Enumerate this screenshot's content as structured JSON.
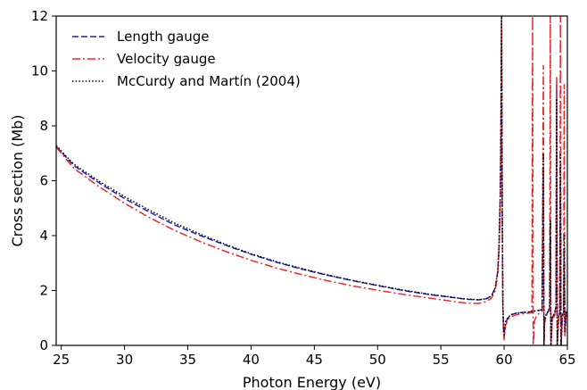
{
  "chart_data": {
    "type": "line",
    "title": "",
    "xlabel": "Photon Energy (eV)",
    "ylabel": "Cross section (Mb)",
    "xlim": [
      24.6,
      65
    ],
    "ylim": [
      0,
      12
    ],
    "xticks": [
      25,
      30,
      35,
      40,
      45,
      50,
      55,
      60,
      65
    ],
    "yticks": [
      0,
      2,
      4,
      6,
      8,
      10,
      12
    ],
    "grid": false,
    "legend": "top-left",
    "series": [
      {
        "name": "Length gauge",
        "color": "#1f1fbf",
        "style": "dashed",
        "x": [
          24.6,
          26,
          28,
          30,
          32,
          34,
          36,
          38,
          40,
          42,
          44,
          46,
          48,
          50,
          52,
          54,
          56,
          57,
          58,
          58.6,
          59,
          59.3,
          59.5,
          59.6,
          59.7,
          59.75,
          59.8,
          59.85,
          59.9,
          59.95,
          60,
          60.1,
          60.3,
          60.6,
          61,
          61.5,
          62,
          62.5,
          63,
          63.1,
          63.15,
          63.2,
          63.3,
          63.5,
          63.6,
          63.65,
          63.7,
          63.8,
          64,
          64.1,
          64.15,
          64.2,
          64.3,
          64.4,
          64.45,
          64.5,
          64.6,
          64.7,
          64.75,
          64.8,
          64.9,
          65
        ],
        "y": [
          7.25,
          6.55,
          5.92,
          5.35,
          4.85,
          4.38,
          4.0,
          3.65,
          3.32,
          3.03,
          2.78,
          2.56,
          2.36,
          2.18,
          2.0,
          1.86,
          1.74,
          1.68,
          1.66,
          1.7,
          1.8,
          2.1,
          2.7,
          3.6,
          5.5,
          8.0,
          12.0,
          5.0,
          1.5,
          0.6,
          0.3,
          0.8,
          1.0,
          1.12,
          1.18,
          1.2,
          1.22,
          1.25,
          1.3,
          6.5,
          0.0,
          0.9,
          1.1,
          1.25,
          1.4,
          4.0,
          0.0,
          1.0,
          1.2,
          1.4,
          9.5,
          0.0,
          1.0,
          1.2,
          6.5,
          0.0,
          1.1,
          1.2,
          3.5,
          0.4,
          1.2,
          1.25
        ]
      },
      {
        "name": "Velocity gauge",
        "color": "#e8292e",
        "style": "dashdot",
        "x": [
          24.6,
          26,
          28,
          30,
          32,
          34,
          36,
          38,
          40,
          42,
          44,
          46,
          48,
          50,
          52,
          54,
          56,
          57,
          58,
          58.6,
          59,
          59.3,
          59.5,
          59.6,
          59.7,
          59.75,
          59.8,
          59.85,
          59.9,
          59.95,
          60,
          60.1,
          60.3,
          60.6,
          61,
          61.5,
          62,
          62.2,
          62.25,
          62.3,
          62.4,
          62.6,
          63,
          63.1,
          63.15,
          63.2,
          63.3,
          63.5,
          63.6,
          63.65,
          63.7,
          63.8,
          64,
          64.1,
          64.15,
          64.2,
          64.3,
          64.4,
          64.45,
          64.5,
          64.6,
          64.7,
          64.75,
          64.8,
          64.9,
          65
        ],
        "y": [
          7.22,
          6.45,
          5.78,
          5.18,
          4.65,
          4.18,
          3.78,
          3.42,
          3.1,
          2.82,
          2.58,
          2.36,
          2.17,
          2.01,
          1.86,
          1.73,
          1.6,
          1.54,
          1.53,
          1.6,
          1.72,
          2.0,
          2.6,
          3.5,
          5.3,
          7.8,
          12.0,
          4.8,
          1.4,
          0.5,
          0.2,
          0.7,
          0.95,
          1.05,
          1.12,
          1.15,
          1.18,
          1.2,
          12.0,
          0.0,
          0.9,
          1.1,
          1.25,
          10.2,
          0.0,
          0.8,
          1.05,
          1.2,
          1.3,
          12.0,
          0.0,
          0.9,
          1.1,
          1.3,
          9.8,
          0.0,
          0.9,
          1.1,
          12.0,
          0.0,
          1.0,
          1.15,
          9.5,
          0.3,
          1.1,
          1.2
        ]
      },
      {
        "name": "McCurdy and Martín (2004)",
        "color": "#000000",
        "style": "dotted",
        "x": [
          24.6,
          26,
          28,
          30,
          32,
          34,
          36,
          38,
          40,
          42,
          44,
          46,
          48,
          50,
          52,
          54,
          56,
          57,
          58,
          58.6,
          59,
          59.3,
          59.5,
          59.6,
          59.7,
          59.75,
          59.8,
          59.85,
          59.9,
          59.95,
          60,
          60.1,
          60.3,
          60.6,
          61,
          61.5,
          62,
          62.5,
          63,
          63.1,
          63.15,
          63.2,
          63.3,
          63.5,
          63.6,
          63.65,
          63.7,
          63.8,
          64,
          64.1,
          64.15,
          64.2,
          64.3,
          64.4,
          64.45,
          64.5,
          64.6,
          64.7,
          64.75,
          64.8,
          64.9,
          65
        ],
        "y": [
          7.28,
          6.6,
          5.98,
          5.42,
          4.92,
          4.45,
          4.05,
          3.68,
          3.34,
          3.05,
          2.8,
          2.57,
          2.37,
          2.19,
          2.02,
          1.87,
          1.75,
          1.69,
          1.66,
          1.7,
          1.8,
          2.1,
          2.7,
          3.7,
          5.6,
          8.2,
          12.0,
          5.2,
          1.5,
          0.7,
          0.4,
          0.85,
          1.02,
          1.13,
          1.18,
          1.2,
          1.22,
          1.26,
          1.3,
          7.0,
          0.0,
          0.9,
          1.1,
          1.25,
          1.4,
          4.6,
          0.0,
          1.0,
          1.2,
          1.4,
          9.0,
          0.0,
          1.0,
          1.2,
          7.0,
          0.0,
          1.1,
          1.2,
          4.0,
          0.5,
          1.2,
          1.25
        ]
      }
    ]
  }
}
